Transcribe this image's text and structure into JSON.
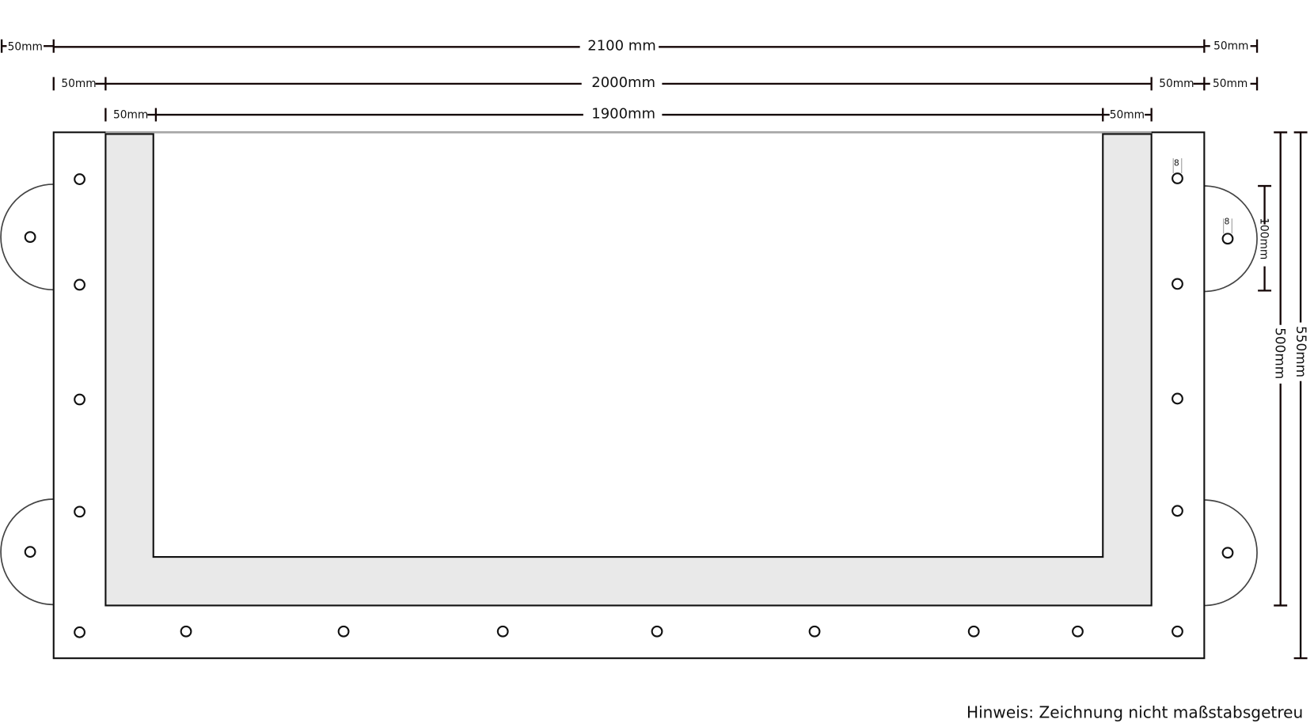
{
  "dimensions": {
    "overall_width": "2100 mm",
    "middle_width": "2000mm",
    "inner_width": "1900mm",
    "margin": "50mm",
    "height_inner": "500mm",
    "height_overall": "550mm",
    "tab_height": "100mm",
    "hole_diameter": "8"
  },
  "note": "Hinweis: Zeichnung nicht maßstabsgetreu",
  "colors": {
    "frame_fill": "#ffffff",
    "border_fill": "#e9e9e9",
    "line": "#111111"
  }
}
